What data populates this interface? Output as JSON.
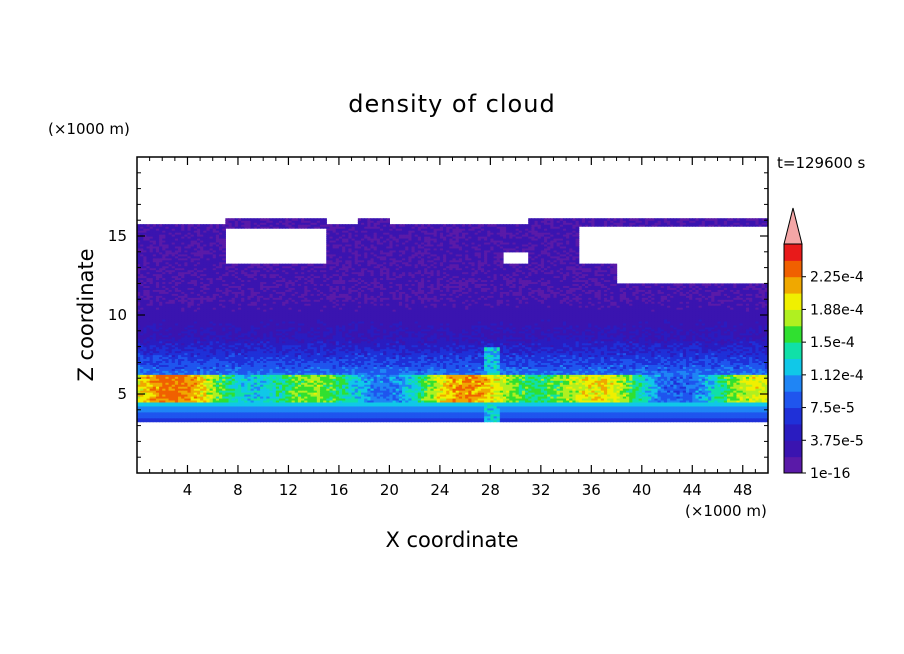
{
  "chart_data": {
    "type": "heatmap",
    "title": "density of cloud",
    "xlabel": "X coordinate",
    "ylabel": "Z coordinate",
    "x_unit": "(×1000 m)",
    "y_unit": "(×1000 m)",
    "time_label": "t=129600 s",
    "xlim": [
      0,
      50
    ],
    "ylim": [
      0,
      20
    ],
    "x_ticks": [
      "4",
      "8",
      "12",
      "16",
      "20",
      "24",
      "28",
      "32",
      "36",
      "40",
      "44",
      "48"
    ],
    "y_ticks": [
      "5",
      "10",
      "15"
    ],
    "grid": false,
    "colorbar": {
      "labels": [
        "1e-16",
        "3.75e-5",
        "7.5e-5",
        "1.12e-4",
        "1.5e-4",
        "1.88e-4",
        "2.25e-4"
      ],
      "levels": [
        1e-16,
        1.875e-05,
        3.75e-05,
        5.625e-05,
        7.5e-05,
        9.375e-05,
        0.000112,
        0.000131,
        0.00015,
        0.000169,
        0.000188,
        0.000206,
        0.000225,
        0.000244
      ],
      "colors": [
        "#5a1aa8",
        "#3a14b0",
        "#2a1cc0",
        "#1f30d8",
        "#1f55ee",
        "#1f85f5",
        "#10c8e8",
        "#10e0a8",
        "#30e030",
        "#b0f020",
        "#f0f000",
        "#f0a800",
        "#f06000",
        "#e81a1a"
      ],
      "extend_color": "#f4a6a6"
    },
    "description_blocks": {
      "background_color": "#5a1aa8",
      "cloud_free_color": "#ffffff"
    }
  }
}
